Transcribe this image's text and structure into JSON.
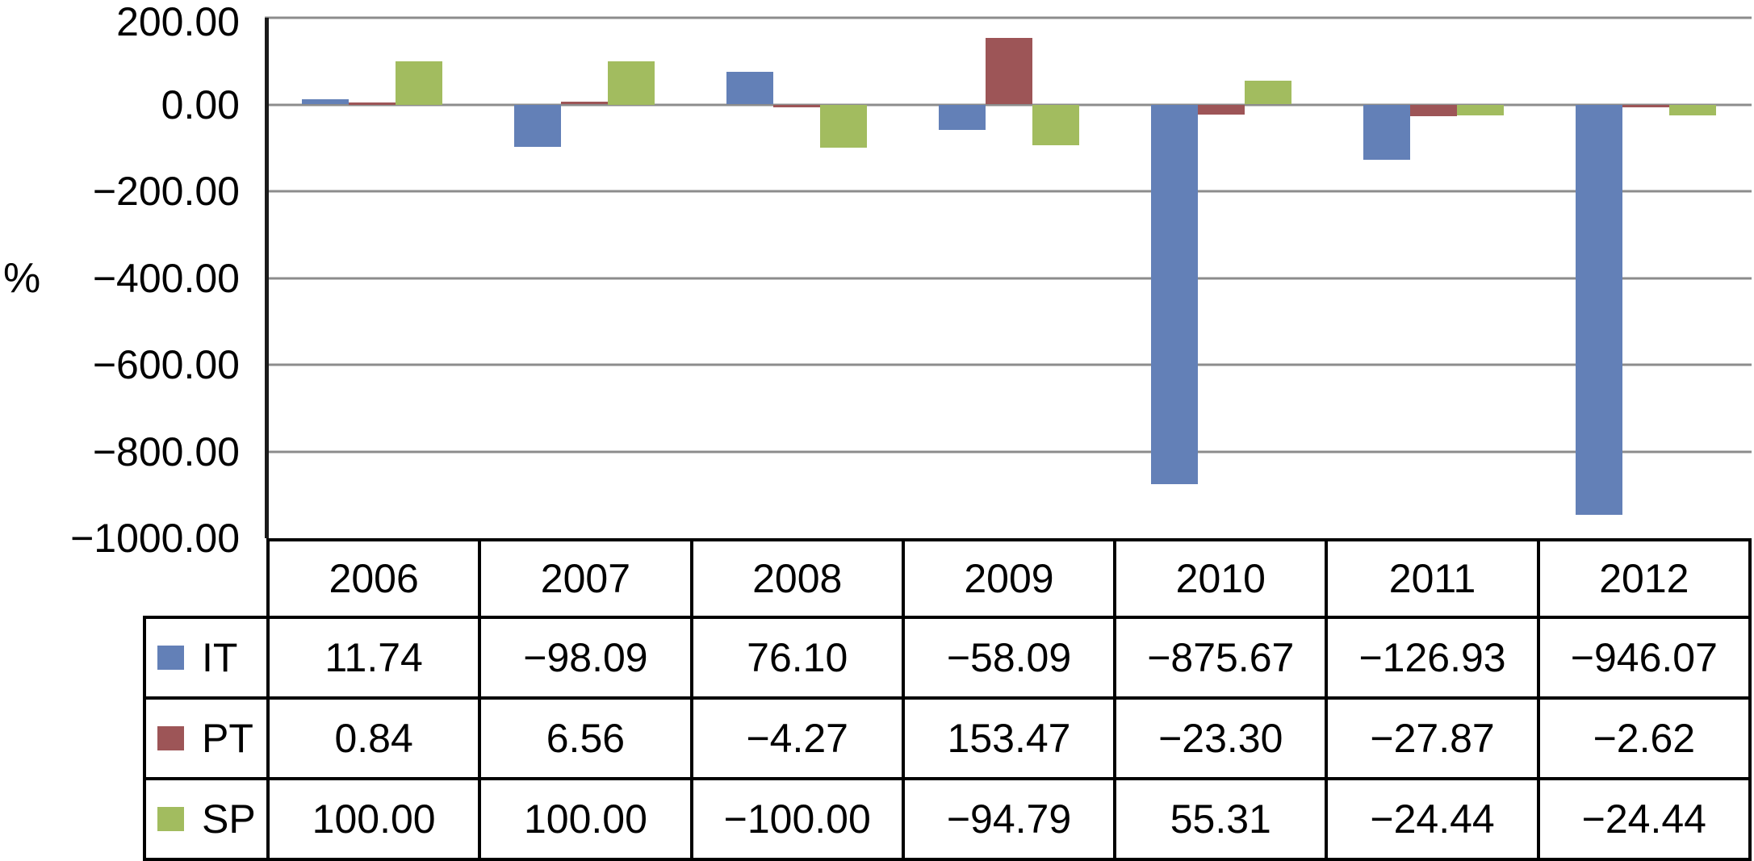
{
  "chart_data": {
    "type": "bar",
    "title": "",
    "ylabel": "%",
    "xlabel": "",
    "categories": [
      "2006",
      "2007",
      "2008",
      "2009",
      "2010",
      "2011",
      "2012"
    ],
    "series": [
      {
        "name": "IT",
        "color": "#6380B7",
        "values": [
          11.74,
          -98.09,
          76.1,
          -58.09,
          -875.67,
          -126.93,
          -946.07
        ]
      },
      {
        "name": "PT",
        "color": "#9D5557",
        "values": [
          0.84,
          6.56,
          -4.27,
          153.47,
          -23.3,
          -27.87,
          -2.62
        ]
      },
      {
        "name": "SP",
        "color": "#A2BC5F",
        "values": [
          100.0,
          100.0,
          -100.0,
          -94.79,
          55.31,
          -24.44,
          -24.44
        ]
      }
    ],
    "ylim": [
      -1000,
      200
    ],
    "yticks": [
      200,
      0,
      -200,
      -400,
      -600,
      -800,
      -1000
    ],
    "ytick_decimals": 2,
    "value_decimals": 2,
    "minus_sign": "−",
    "grid": true,
    "legend_position": "table-left"
  },
  "styles": {
    "background": "#FFFFFF",
    "gridline_color": "#8C8C8C",
    "axis_color": "#1A1A1A",
    "table_border_color": "#000000",
    "text_color": "#000000"
  }
}
